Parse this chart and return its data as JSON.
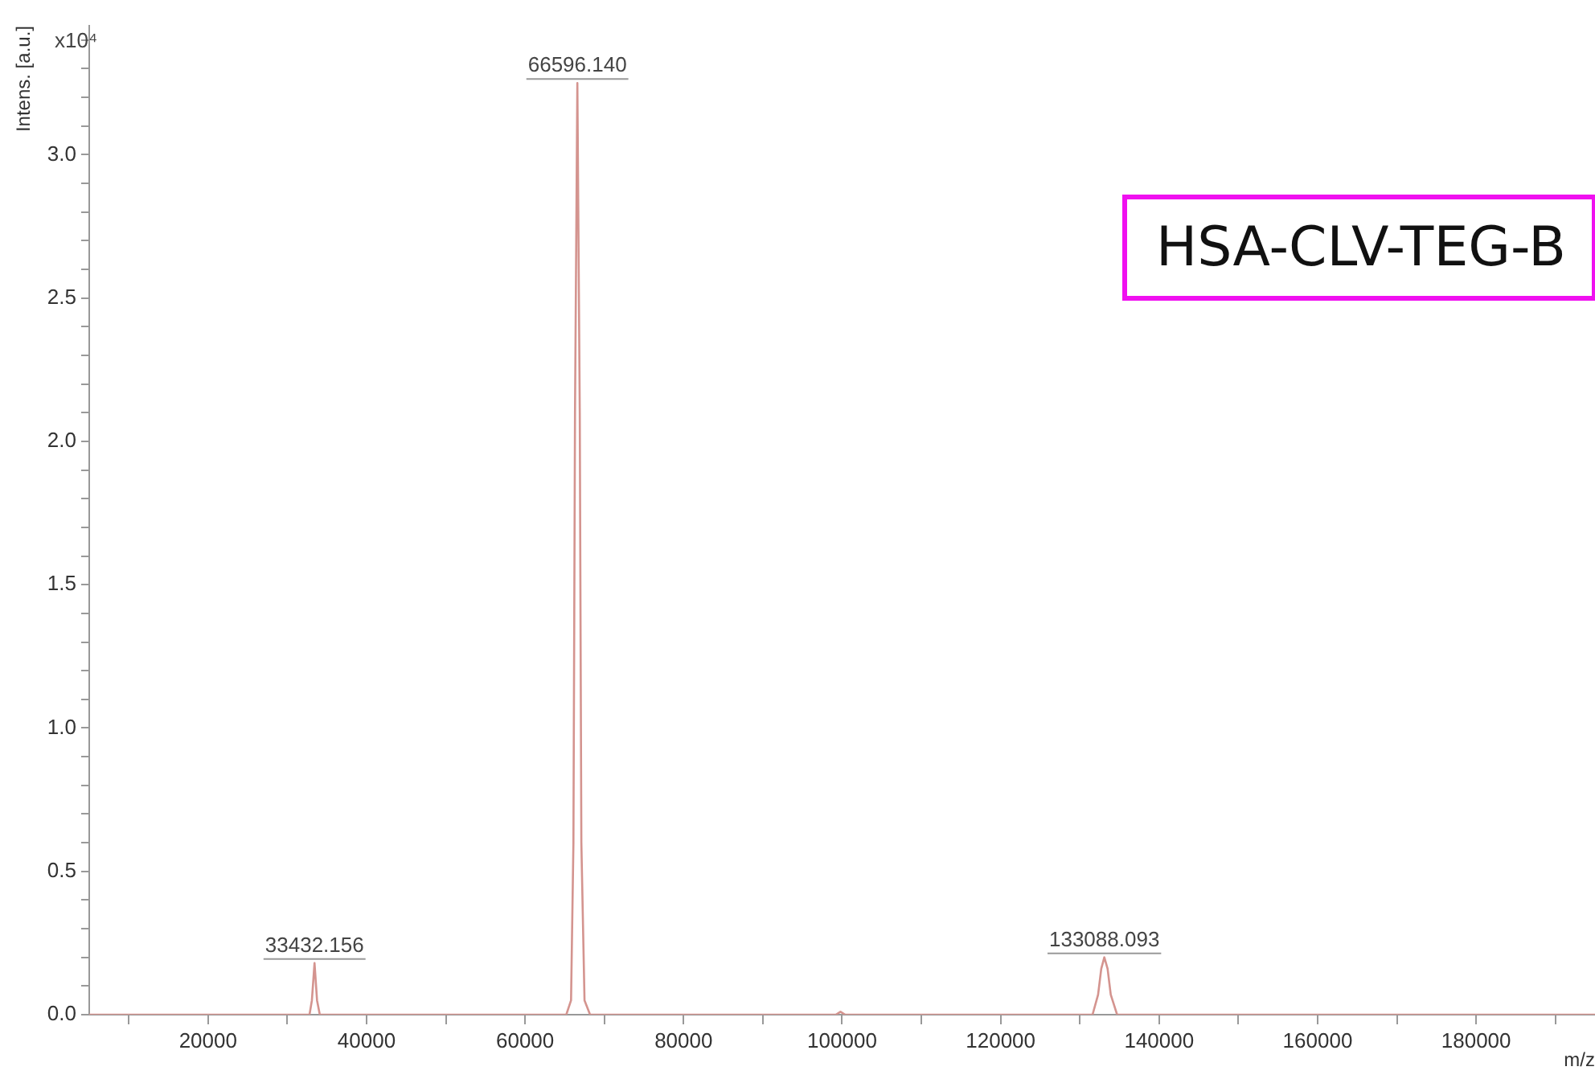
{
  "chart_data": {
    "type": "line",
    "xlabel": "m/z",
    "ylabel": "Intens. [a.u.]",
    "annotations": [
      "x10⁴",
      "HSA-CLV-TEG-B",
      {
        "text": "33432.156",
        "x": 33432,
        "y": 0.18
      },
      {
        "text": "66596.140",
        "x": 66596,
        "y": 3.25
      },
      {
        "text": "133088.093",
        "x": 133088,
        "y": 0.2
      }
    ],
    "x": [
      5000,
      32800,
      33100,
      33432,
      33750,
      34100,
      65200,
      65800,
      66100,
      66300,
      66596,
      66900,
      67100,
      67500,
      68200,
      99200,
      99800,
      100400,
      131600,
      132300,
      132700,
      133088,
      133500,
      133900,
      134700,
      195000
    ],
    "series": [
      {
        "color": "#d4948f",
        "values": [
          0,
          0,
          0.05,
          0.18,
          0.05,
          0,
          0,
          0.05,
          0.6,
          2.1,
          3.25,
          2.1,
          0.6,
          0.05,
          0,
          0,
          0.01,
          0,
          0,
          0.07,
          0.16,
          0.2,
          0.16,
          0.07,
          0,
          0
        ]
      }
    ],
    "xlim": [
      5000,
      195000
    ],
    "xticks": [
      {
        "value": 10000,
        "label": null
      },
      20000,
      {
        "value": 30000,
        "label": null
      },
      40000,
      {
        "value": 50000,
        "label": null
      },
      60000,
      {
        "value": 70000,
        "label": null
      },
      80000,
      {
        "value": 90000,
        "label": null
      },
      100000,
      {
        "value": 110000,
        "label": null
      },
      120000,
      {
        "value": 130000,
        "label": null
      },
      140000,
      {
        "value": 150000,
        "label": null
      },
      160000,
      {
        "value": 170000,
        "label": null
      },
      180000,
      {
        "value": 190000,
        "label": null
      }
    ],
    "ylim": [
      0,
      3.45
    ],
    "yticks": [
      {
        "value": 0,
        "label": "0.0"
      },
      {
        "value": 0.1,
        "label": null
      },
      {
        "value": 0.2,
        "label": null
      },
      {
        "value": 0.3,
        "label": null
      },
      {
        "value": 0.4,
        "label": null
      },
      0.5,
      {
        "value": 0.6,
        "label": null
      },
      {
        "value": 0.7,
        "label": null
      },
      {
        "value": 0.8,
        "label": null
      },
      {
        "value": 0.9,
        "label": null
      },
      {
        "value": 1,
        "label": "1.0"
      },
      {
        "value": 1.1,
        "label": null
      },
      {
        "value": 1.2,
        "label": null
      },
      {
        "value": 1.3,
        "label": null
      },
      {
        "value": 1.4,
        "label": null
      },
      1.5,
      {
        "value": 1.6,
        "label": null
      },
      {
        "value": 1.7,
        "label": null
      },
      {
        "value": 1.8,
        "label": null
      },
      {
        "value": 1.9,
        "label": null
      },
      {
        "value": 2,
        "label": "2.0"
      },
      {
        "value": 2.1,
        "label": null
      },
      {
        "value": 2.2,
        "label": null
      },
      {
        "value": 2.3,
        "label": null
      },
      {
        "value": 2.4,
        "label": null
      },
      2.5,
      {
        "value": 2.6,
        "label": null
      },
      {
        "value": 2.7,
        "label": null
      },
      {
        "value": 2.8,
        "label": null
      },
      {
        "value": 2.9,
        "label": null
      },
      {
        "value": 3,
        "label": "3.0"
      },
      {
        "value": 3.1,
        "label": null
      },
      {
        "value": 3.2,
        "label": null
      },
      {
        "value": 3.3,
        "label": null
      },
      {
        "value": 3.4,
        "label": null
      }
    ],
    "grid": false,
    "legend": false,
    "marker": "none",
    "line_style": "solid"
  }
}
